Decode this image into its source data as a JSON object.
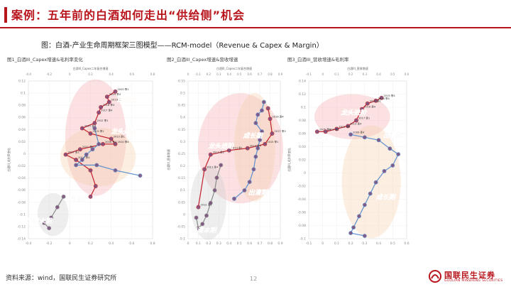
{
  "header": {
    "title": "案例：五年前的白酒如何走出“供给侧”机会"
  },
  "figure": {
    "caption": "图：白酒-产业生命周期框架三图模型——RCM-model（Revenue & Capex & Margin）"
  },
  "footer": {
    "source": "资料来源：wind，国联民生证券研究所",
    "page": "12"
  },
  "logo": {
    "cn": "国联民生证券",
    "en": "GUOLIAN MINSHENG SECURITIES"
  },
  "colors": {
    "brand": "#b8141b",
    "blue_series": "#5b8fd0",
    "red_series": "#c0202c",
    "purple_point": "#7b4f7d",
    "stage_red": "#f3a9ad",
    "stage_orange": "#f6cfa8",
    "stage_gray": "#cfcfcf"
  },
  "chart_data": [
    {
      "type": "scatter",
      "title": "图1_白酒III_Capex增速&毛利率变化",
      "xlabel": "白酒III_Capex二年复合增速",
      "ylabel": "白酒III_毛利率变化",
      "xlim": [
        -0.4,
        0.8
      ],
      "ylim": [
        -0.16,
        0.14
      ],
      "x_ticks": [
        "-0.4",
        "-0.2",
        "0",
        "0.2",
        "0.4",
        "0.6",
        "0.8"
      ],
      "y_ticks": [
        "0.12",
        "0.1",
        "0.08",
        "0.06",
        "0.04",
        "0.02",
        "0",
        "-0.02",
        "-0.04",
        "-0.06",
        "-0.08",
        "-0.1",
        "-0.12",
        "-0.14"
      ],
      "stage_labels": [
        {
          "text": "成长期",
          "x": 0.55,
          "y": 0.1
        },
        {
          "text": "龙头进阶",
          "x": 0.52,
          "y": 0.04
        },
        {
          "text": "出清期",
          "x": 0.05,
          "y": -0.09
        },
        {
          "text": "出清末期",
          "x": -0.3,
          "y": -0.13
        }
      ],
      "series": [
        {
          "name": "",
          "color": "#c0202c",
          "points": [
            [
              0.44,
              0.12
            ],
            [
              0.36,
              0.11
            ],
            [
              0.38,
              0.1
            ],
            [
              0.3,
              0.09
            ],
            [
              0.28,
              0.08
            ],
            [
              0.24,
              0.06
            ],
            [
              0.12,
              0.05
            ],
            [
              0.2,
              0.04
            ],
            [
              0.4,
              0.03
            ],
            [
              0.44,
              0.02
            ],
            [
              0.32,
              0.02
            ],
            [
              0.1,
              0.01
            ],
            [
              -0.04,
              0.0
            ],
            [
              0.06,
              -0.01
            ],
            [
              0.2,
              -0.03
            ],
            [
              0.25,
              -0.06
            ],
            [
              0.2,
              -0.08
            ]
          ]
        },
        {
          "name": "",
          "color": "#5b8fd0",
          "points": [
            [
              0.24,
              0.05
            ],
            [
              0.28,
              0.02
            ],
            [
              0.22,
              0.01
            ],
            [
              0.16,
              0.0
            ],
            [
              0.12,
              -0.01
            ],
            [
              0.06,
              -0.02
            ],
            [
              0.26,
              -0.02
            ],
            [
              0.44,
              -0.03
            ],
            [
              0.68,
              -0.04
            ]
          ]
        },
        {
          "name": "",
          "color": "#8a8a8a",
          "points": [
            [
              -0.06,
              -0.08
            ],
            [
              -0.12,
              -0.1
            ],
            [
              -0.18,
              -0.12
            ],
            [
              -0.25,
              -0.13
            ],
            [
              -0.2,
              -0.14
            ]
          ]
        }
      ],
      "point_labels": [
        "2020 季1",
        "2019 季4",
        "2019 季1",
        "2018 季4",
        "2017 季4",
        "2012 季1",
        "2015 季4",
        "2015 季1",
        "2013 季1",
        "2010 季4",
        "2006 季4",
        "2021 季1",
        "2017 季1",
        "2014 季4"
      ]
    },
    {
      "type": "scatter",
      "title": "图2_白酒III_Capex增速&营收增速",
      "xlabel": "白酒III_Capex二年复合增速",
      "ylabel": "白酒III_营收增速",
      "xlim": [
        0,
        0.9
      ],
      "ylim": [
        -0.15,
        0.6
      ],
      "x_ticks": [
        "0",
        "0.1",
        "0.2",
        "0.3",
        "0.4",
        "0.5",
        "0.6",
        "0.7",
        "0.8",
        "0.9"
      ],
      "y_ticks": [
        "0.55",
        "0.5",
        "0.45",
        "0.4",
        "0.35",
        "0.3",
        "0.25",
        "0.2",
        "0.15",
        "0.1",
        "0.05",
        "0",
        "-0.05",
        "-0.1"
      ],
      "stage_labels": [
        {
          "text": "龙头进阶",
          "x": 0.32,
          "y": 0.28
        },
        {
          "text": "成长期",
          "x": 0.63,
          "y": 0.33
        },
        {
          "text": "出清期",
          "x": 0.68,
          "y": 0.06
        },
        {
          "text": "出清末期",
          "x": 0.15,
          "y": -0.12
        }
      ],
      "series": [
        {
          "name": "",
          "color": "#c0202c",
          "points": [
            [
              0.1,
              0.0
            ],
            [
              0.16,
              0.18
            ],
            [
              0.22,
              0.25
            ],
            [
              0.4,
              0.27
            ],
            [
              0.58,
              0.28
            ],
            [
              0.75,
              0.3
            ],
            [
              0.82,
              0.35
            ],
            [
              0.8,
              0.42
            ],
            [
              0.78,
              0.47
            ]
          ]
        },
        {
          "name": "",
          "color": "#5b8fd0",
          "points": [
            [
              0.74,
              0.5
            ],
            [
              0.72,
              0.46
            ],
            [
              0.68,
              0.44
            ],
            [
              0.66,
              0.4
            ],
            [
              0.72,
              0.36
            ],
            [
              0.7,
              0.32
            ],
            [
              0.68,
              0.28
            ],
            [
              0.66,
              0.24
            ],
            [
              0.64,
              0.18
            ],
            [
              0.6,
              0.12
            ],
            [
              0.55,
              0.08
            ],
            [
              0.45,
              0.04
            ]
          ]
        },
        {
          "name": "",
          "color": "#8a8a8a",
          "points": [
            [
              0.32,
              0.2
            ],
            [
              0.28,
              0.14
            ],
            [
              0.26,
              0.08
            ],
            [
              0.22,
              0.02
            ],
            [
              0.18,
              -0.04
            ],
            [
              0.14,
              -0.08
            ],
            [
              0.1,
              -0.1
            ],
            [
              0.08,
              -0.05
            ]
          ]
        }
      ],
      "point_labels": [
        "2012 季1",
        "2011 季4",
        "2012 季2",
        "2013 季1",
        "2014 季4",
        "2015 季1",
        "2017 季3",
        "2016 季4"
      ]
    },
    {
      "type": "scatter",
      "title": "图3_白酒III_营收增速&毛利率",
      "xlabel": "白酒III_营收增速",
      "ylabel": "白酒III_毛利率变化",
      "xlim": [
        -0.1,
        0.6
      ],
      "ylim": [
        -0.12,
        0.16
      ],
      "x_ticks": [
        "-0.1",
        "0",
        "0.1",
        "0.2",
        "0.3",
        "0.4",
        "0.5",
        "0.6"
      ],
      "y_ticks": [
        "0.14",
        "0.12",
        "0.1",
        "0.08",
        "0.06",
        "0.04",
        "0.02",
        "0",
        "-0.02",
        "-0.04",
        "-0.06",
        "-0.08",
        "-0.1"
      ],
      "stage_labels": [
        {
          "text": "龙头进阶",
          "x": 0.22,
          "y": 0.1
        },
        {
          "text": "出清期",
          "x": 0.5,
          "y": 0.06
        },
        {
          "text": "出清末期",
          "x": -0.06,
          "y": 0.05
        },
        {
          "text": "成长期",
          "x": 0.45,
          "y": -0.05
        }
      ],
      "series": [
        {
          "name": "",
          "color": "#c0202c",
          "points": [
            [
              0.42,
              0.13
            ],
            [
              0.38,
              0.125
            ],
            [
              0.32,
              0.12
            ],
            [
              0.28,
              0.11
            ],
            [
              0.24,
              0.09
            ],
            [
              0.18,
              0.08
            ],
            [
              0.1,
              0.075
            ],
            [
              0.02,
              0.07
            ],
            [
              -0.04,
              0.07
            ]
          ]
        },
        {
          "name": "",
          "color": "#5b8fd0",
          "points": [
            [
              0.2,
              0.065
            ],
            [
              0.3,
              0.06
            ],
            [
              0.4,
              0.055
            ],
            [
              0.48,
              0.04
            ],
            [
              0.54,
              0.03
            ],
            [
              0.5,
              0.01
            ],
            [
              0.44,
              0.0
            ],
            [
              0.38,
              -0.02
            ],
            [
              0.34,
              -0.04
            ],
            [
              0.3,
              -0.06
            ],
            [
              0.26,
              -0.08
            ],
            [
              0.22,
              -0.1
            ],
            [
              0.2,
              -0.11
            ],
            [
              0.3,
              -0.115
            ]
          ]
        }
      ],
      "point_labels": [
        "2019 季4",
        "2018 季4",
        "2020 季1",
        "2016 季4",
        "2017 季1",
        "2013 季4",
        "2011 季4",
        "2010 季1",
        "2005 季4",
        "2009 季4"
      ]
    }
  ]
}
